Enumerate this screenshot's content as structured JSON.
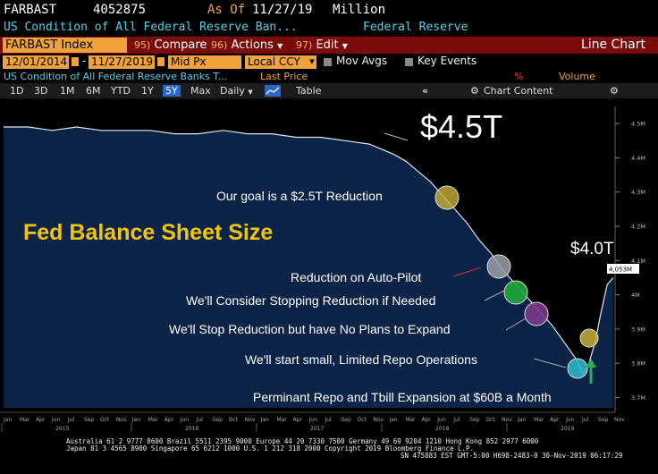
{
  "header": {
    "ticker": "FARBAST",
    "value": "4052875",
    "asof_label": "As Of",
    "asof_date": "11/27/19",
    "unit": "Million",
    "description": "US Condition of All Federal Reserve Ban...",
    "source": "Federal Reserve"
  },
  "cmdbar": {
    "security": "FARBAST Index",
    "compare_num": "95)",
    "compare": "Compare",
    "actions_num": "96)",
    "actions": "Actions",
    "edit_num": "97)",
    "edit": "Edit",
    "chart_type": "Line Chart"
  },
  "options": {
    "start_date": "12/01/2014",
    "dash": "-",
    "end_date": "11/27/2019",
    "price_field": "Mid Px",
    "currency": "Local CCY",
    "mov_avgs": "Mov Avgs",
    "key_events": "Key Events"
  },
  "inforow": {
    "security_desc": "US Condition of All Federal Reserve Banks T...",
    "last_price": "Last Price",
    "pct": "%",
    "volume": "Volume"
  },
  "periods": {
    "items": [
      "1D",
      "3D",
      "1M",
      "6M",
      "YTD",
      "1Y",
      "5Y",
      "Max"
    ],
    "selected": "5Y",
    "frequency": "Daily",
    "table": "Table",
    "chart_content": "Chart Content"
  },
  "chart_data": {
    "type": "area",
    "title": "Fed Balance Sheet Size",
    "y_axis_ticks": [
      "4.5M",
      "4.4M",
      "4.3M",
      "4.2M",
      "4.1M",
      "4M",
      "3.9M",
      "3.8M",
      "3.7M"
    ],
    "ylim": [
      3.67,
      4.55
    ],
    "last_value_label": "4,053M",
    "x_years": [
      "2015",
      "2016",
      "2017",
      "2018",
      "2019"
    ],
    "x_months": [
      "Jan",
      "Mar",
      "Apr",
      "Jun",
      "Jul",
      "Sep",
      "Oct",
      "Nov",
      "Jan",
      "Mar",
      "Apr",
      "Jun",
      "Jul",
      "Sep",
      "Oct",
      "Nov",
      "Jan",
      "Mar",
      "Apr",
      "Jun",
      "Jul",
      "Sep",
      "Oct",
      "Nov",
      "Jan",
      "Mar",
      "Apr",
      "Jun",
      "Jul",
      "Sep",
      "Oct",
      "Nov",
      "Jan",
      "Mar",
      "Apr",
      "Jun",
      "Jul",
      "Sep",
      "Nov"
    ],
    "series": [
      {
        "x": [
          0,
          0.04,
          0.08,
          0.12,
          0.16,
          0.2,
          0.24,
          0.28,
          0.32,
          0.36,
          0.4,
          0.44,
          0.48,
          0.52,
          0.56,
          0.6,
          0.64,
          0.66,
          0.68,
          0.7,
          0.72,
          0.74,
          0.76,
          0.78,
          0.8,
          0.82,
          0.84,
          0.86,
          0.88,
          0.9,
          0.92,
          0.94,
          0.95,
          0.96,
          0.97,
          0.98,
          0.99,
          1.0
        ],
        "values": [
          4.49,
          4.49,
          4.48,
          4.49,
          4.48,
          4.48,
          4.48,
          4.47,
          4.47,
          4.48,
          4.47,
          4.47,
          4.46,
          4.46,
          4.45,
          4.44,
          4.41,
          4.39,
          4.36,
          4.33,
          4.29,
          4.25,
          4.21,
          4.16,
          4.12,
          4.07,
          4.03,
          3.99,
          3.95,
          3.91,
          3.86,
          3.81,
          3.77,
          3.8,
          3.86,
          3.95,
          4.03,
          4.05
        ]
      }
    ],
    "annotations": {
      "top_value": "$4.5T",
      "end_value": "$4.0T",
      "a1": "Our goal is a $2.5T Reduction",
      "a2": "Reduction on Auto-Pilot",
      "a3": "We'll Consider Stopping Reduction if Needed",
      "a4": "We'll Stop Reduction but have No Plans to Expand",
      "a5": "We'll start small, Limited Repo Operations",
      "a6": "Perminant Repo and Tbill Expansion at $60B a Month"
    }
  },
  "footer": {
    "line1": "Australia 61 2 9777 8600 Brazil 5511 2395 9000 Europe 44 20 7330 7500 Germany 49 69 9204 1210 Hong Kong 852 2977 6000",
    "line2": "Japan 81 3 4565 8900        Singapore 65 6212 1000      U.S. 1 212 318 2000      Copyright 2019 Bloomberg Finance L.P.",
    "line3": "SN 475883 EST  GMT-5:00 H698-2483-0 30-Nov-2019 06:17:29"
  }
}
